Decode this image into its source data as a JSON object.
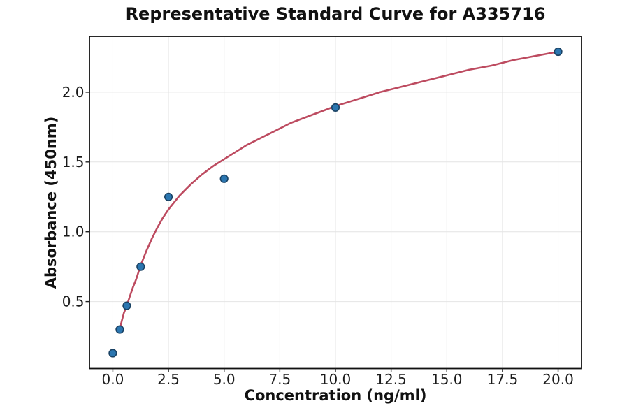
{
  "chart_data": {
    "type": "scatter",
    "title": "Representative Standard Curve for A335716",
    "xlabel": "Concentration (ng/ml)",
    "ylabel": "Absorbance (450nm)",
    "xlim": [
      -1.05,
      21.05
    ],
    "ylim": [
      0.02,
      2.4
    ],
    "grid": true,
    "legend": "none",
    "x_ticks": [
      0.0,
      2.5,
      5.0,
      7.5,
      10.0,
      12.5,
      15.0,
      17.5,
      20.0
    ],
    "x_tick_labels": [
      "0.0",
      "2.5",
      "5.0",
      "7.5",
      "10.0",
      "12.5",
      "15.0",
      "17.5",
      "20.0"
    ],
    "y_ticks": [
      0.5,
      1.0,
      1.5,
      2.0
    ],
    "y_tick_labels": [
      "0.5",
      "1.0",
      "1.5",
      "2.0"
    ],
    "series": [
      {
        "name": "standard-points",
        "type": "scatter",
        "x": [
          0,
          0.313,
          0.625,
          1.25,
          2.5,
          5,
          10,
          20
        ],
        "y": [
          0.13,
          0.3,
          0.47,
          0.75,
          1.25,
          1.38,
          1.89,
          2.29
        ],
        "marker_fill": "#2b76b0",
        "marker_edge": "#1a4264"
      },
      {
        "name": "fitted-curve",
        "type": "line",
        "color": "#bd4b60",
        "x": [
          0.313,
          0.4,
          0.5,
          0.625,
          0.75,
          0.9,
          1.05,
          1.25,
          1.5,
          1.75,
          2.0,
          2.25,
          2.5,
          2.75,
          3.0,
          3.5,
          4.0,
          4.5,
          5.0,
          5.5,
          6.0,
          6.5,
          7.0,
          7.5,
          8.0,
          8.5,
          9.0,
          9.5,
          10.0,
          11.0,
          12.0,
          12.5,
          13.0,
          14.0,
          15.0,
          16.0,
          17.0,
          17.5,
          18.0,
          19.0,
          20.0
        ],
        "y": [
          0.3,
          0.36,
          0.42,
          0.47,
          0.53,
          0.6,
          0.66,
          0.76,
          0.86,
          0.95,
          1.03,
          1.1,
          1.16,
          1.21,
          1.26,
          1.34,
          1.41,
          1.47,
          1.52,
          1.57,
          1.62,
          1.66,
          1.7,
          1.74,
          1.78,
          1.81,
          1.84,
          1.87,
          1.9,
          1.95,
          2.0,
          2.02,
          2.04,
          2.08,
          2.12,
          2.16,
          2.19,
          2.21,
          2.23,
          2.26,
          2.29
        ]
      }
    ],
    "colors": {
      "background": "#ffffff",
      "grid": "#e4e4e4",
      "spine": "#111111",
      "tick": "#222222",
      "text": "#1a1a1a"
    }
  }
}
